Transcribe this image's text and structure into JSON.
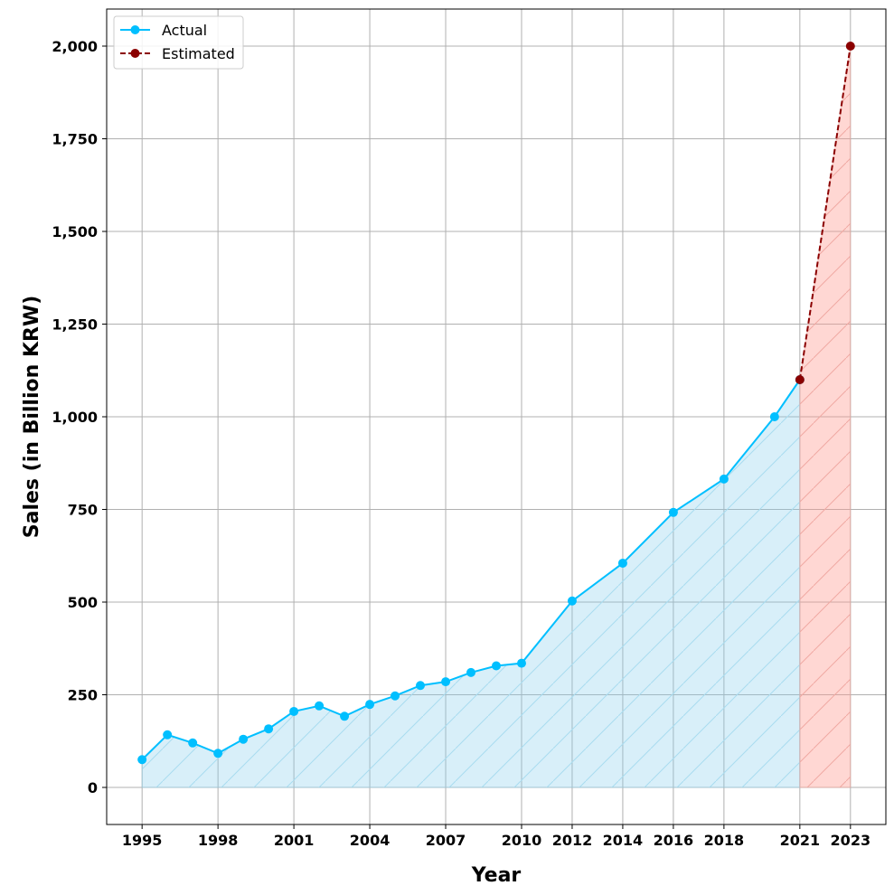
{
  "chart_data": {
    "type": "line",
    "title": "",
    "xlabel": "Year",
    "ylabel": "Sales (in Billion KRW)",
    "xlim": [
      1993.6,
      2024.4
    ],
    "ylim": [
      -100,
      2100
    ],
    "x_ticks": [
      1995,
      1998,
      2001,
      2004,
      2007,
      2010,
      2012,
      2014,
      2016,
      2018,
      2021,
      2023
    ],
    "y_ticks": [
      0,
      250,
      500,
      750,
      1000,
      1250,
      1500,
      1750,
      2000
    ],
    "y_tick_labels": [
      "0",
      "250",
      "500",
      "750",
      "1,000",
      "1,250",
      "1,500",
      "1,750",
      "2,000"
    ],
    "grid": true,
    "legend_position": "top-left",
    "series": [
      {
        "name": "Actual",
        "color": "#00bfff",
        "fill": "#87ceeb",
        "style": "solid",
        "x": [
          1995,
          1996,
          1997,
          1998,
          1999,
          2000,
          2001,
          2002,
          2003,
          2004,
          2005,
          2006,
          2007,
          2008,
          2009,
          2010,
          2012,
          2014,
          2016,
          2018,
          2020,
          2021
        ],
        "values": [
          75,
          142,
          120,
          92,
          130,
          158,
          205,
          220,
          192,
          224,
          247,
          275,
          285,
          310,
          328,
          335,
          503,
          605,
          742,
          832,
          1000,
          1100
        ]
      },
      {
        "name": "Estimated",
        "color": "#8b0000",
        "fill": "#ff9b90",
        "style": "dashed",
        "x": [
          2021,
          2023
        ],
        "values": [
          1100,
          2000
        ]
      }
    ]
  }
}
